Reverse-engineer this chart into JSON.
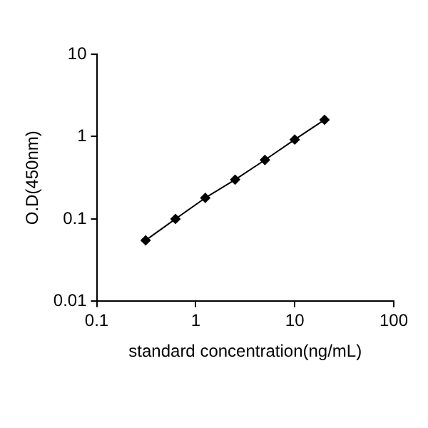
{
  "chart_data": {
    "type": "line",
    "xlabel": "standard concentration(ng/mL)",
    "ylabel": "O.D(450nm)",
    "log": "xy",
    "grid": false,
    "marker": "diamond",
    "line_style": "solid",
    "x": [
      0.3125,
      0.625,
      1.25,
      2.5,
      5,
      10,
      20
    ],
    "series": [
      {
        "color": "#000000",
        "values": [
          0.055,
          0.1,
          0.18,
          0.3,
          0.52,
          0.92,
          1.6
        ]
      }
    ],
    "xlim": [
      0.1,
      100
    ],
    "xticks": [
      0.1,
      1,
      10,
      100
    ],
    "ylim": [
      0.01,
      10
    ],
    "yticks": [
      0.01,
      0.1,
      1,
      10
    ]
  }
}
